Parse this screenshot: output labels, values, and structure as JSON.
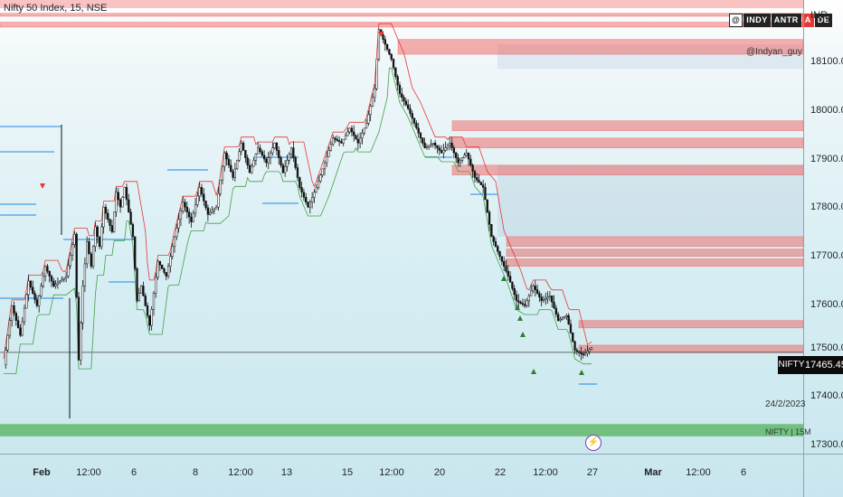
{
  "header": {
    "title": "Nifty 50 Index, 15, NSE",
    "brand_parts": [
      "INDY",
      "ANTR",
      "A",
      "DE"
    ],
    "brand_at": "@",
    "handle": "@Indyan_guy",
    "currency": "INR"
  },
  "price_tag": {
    "symbol": "NIFTY",
    "value": "17465.45"
  },
  "overlay": {
    "date": "24/2/2023",
    "symbol_tf": "NIFTY | 15M"
  },
  "colors": {
    "up": "#1f1f1f",
    "down": "#1f1f1f",
    "supply": "#ef5350",
    "demand": "#4caf50",
    "band": "#8fa7c9"
  },
  "chart_data": {
    "type": "candlestick",
    "y_axis": {
      "ticks": [
        "18100.00",
        "18000.00",
        "17900.00",
        "17800.00",
        "17700.00",
        "17600.00",
        "17500.00",
        "17400.00",
        "17300.00"
      ]
    },
    "x_axis": {
      "ticks": [
        "Feb",
        "12:00",
        "6",
        "8",
        "12:00",
        "13",
        "15",
        "12:00",
        "20",
        "22",
        "12:00",
        "27",
        "Mar",
        "12:00",
        "6"
      ]
    },
    "ylim": [
      17260,
      18180
    ],
    "last_price": 17465.45,
    "path_points": [
      [
        0,
        17440
      ],
      [
        2,
        17560
      ],
      [
        4,
        17500
      ],
      [
        6,
        17610
      ],
      [
        8,
        17560
      ],
      [
        10,
        17640
      ],
      [
        12,
        17600
      ],
      [
        15,
        17620
      ],
      [
        17,
        17705
      ],
      [
        18,
        17450
      ],
      [
        19,
        17600
      ],
      [
        20,
        17690
      ],
      [
        21,
        17640
      ],
      [
        22,
        17720
      ],
      [
        23,
        17680
      ],
      [
        24,
        17760
      ],
      [
        26,
        17710
      ],
      [
        27,
        17790
      ],
      [
        28,
        17760
      ],
      [
        29,
        17800
      ],
      [
        31,
        17700
      ],
      [
        32,
        17570
      ],
      [
        33,
        17600
      ],
      [
        35,
        17520
      ],
      [
        37,
        17650
      ],
      [
        39,
        17620
      ],
      [
        41,
        17700
      ],
      [
        43,
        17770
      ],
      [
        45,
        17730
      ],
      [
        47,
        17800
      ],
      [
        49,
        17745
      ],
      [
        51,
        17760
      ],
      [
        53,
        17870
      ],
      [
        55,
        17820
      ],
      [
        57,
        17890
      ],
      [
        59,
        17830
      ],
      [
        61,
        17880
      ],
      [
        63,
        17850
      ],
      [
        65,
        17890
      ],
      [
        67,
        17830
      ],
      [
        69,
        17880
      ],
      [
        71,
        17800
      ],
      [
        73,
        17760
      ],
      [
        75,
        17800
      ],
      [
        77,
        17850
      ],
      [
        79,
        17900
      ],
      [
        81,
        17890
      ],
      [
        83,
        17920
      ],
      [
        85,
        17890
      ],
      [
        87,
        17930
      ],
      [
        89,
        18000
      ],
      [
        90,
        18120
      ],
      [
        91,
        18100
      ],
      [
        93,
        18060
      ],
      [
        95,
        17990
      ],
      [
        97,
        17960
      ],
      [
        99,
        17920
      ],
      [
        101,
        17880
      ],
      [
        103,
        17890
      ],
      [
        105,
        17870
      ],
      [
        107,
        17890
      ],
      [
        109,
        17850
      ],
      [
        111,
        17870
      ],
      [
        113,
        17820
      ],
      [
        115,
        17800
      ],
      [
        117,
        17700
      ],
      [
        119,
        17660
      ],
      [
        121,
        17620
      ],
      [
        123,
        17570
      ],
      [
        125,
        17560
      ],
      [
        127,
        17600
      ],
      [
        129,
        17570
      ],
      [
        131,
        17580
      ],
      [
        133,
        17530
      ],
      [
        135,
        17540
      ],
      [
        137,
        17470
      ],
      [
        139,
        17460
      ],
      [
        141,
        17475
      ]
    ],
    "supply_zones": [
      [
        18147,
        18153
      ],
      [
        18125,
        18135
      ],
      [
        18070,
        18100
      ],
      [
        17915,
        17935
      ],
      [
        17880,
        17900
      ],
      [
        17825,
        17845
      ],
      [
        17680,
        17700
      ],
      [
        17660,
        17675
      ],
      [
        17640,
        17655
      ],
      [
        17515,
        17530
      ],
      [
        17465,
        17480
      ]
    ],
    "demand_zones": [
      [
        17295,
        17320
      ]
    ],
    "bands": [
      [
        17700,
        17845
      ],
      [
        18040,
        18090
      ]
    ]
  }
}
